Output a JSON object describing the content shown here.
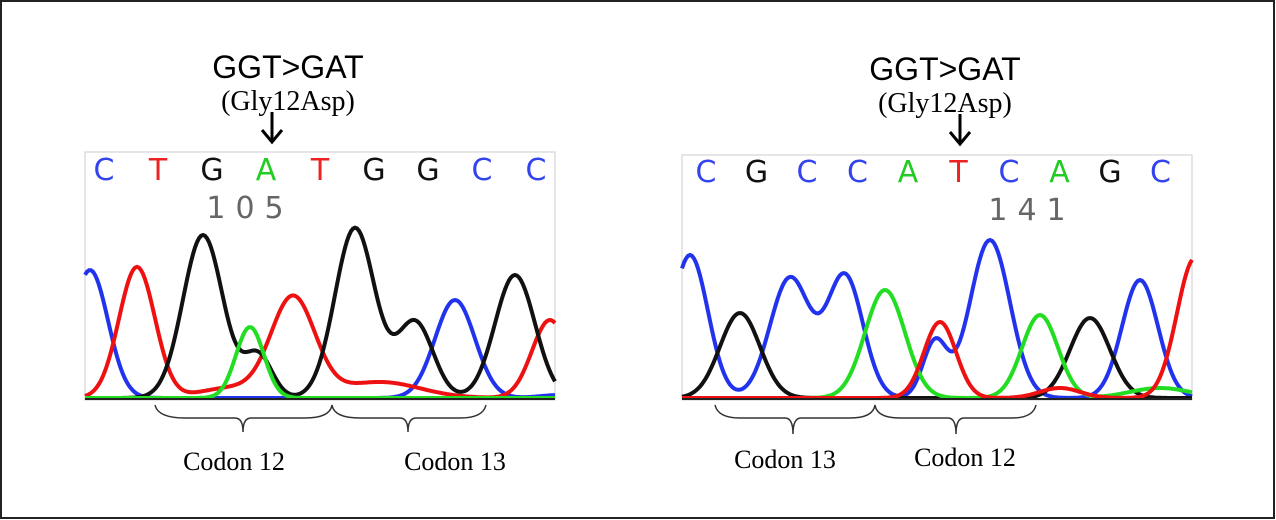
{
  "panels": [
    {
      "mutation": "GGT>GAT",
      "protein_change": "(Gly12Asp)",
      "bases": [
        {
          "letter": "C",
          "color": "#3344ee"
        },
        {
          "letter": "T",
          "color": "#ee2222"
        },
        {
          "letter": "G",
          "color": "#111111"
        },
        {
          "letter": "A",
          "color": "#22cc22"
        },
        {
          "letter": "T",
          "color": "#ee2222"
        },
        {
          "letter": "G",
          "color": "#111111"
        },
        {
          "letter": "G",
          "color": "#111111"
        },
        {
          "letter": "C",
          "color": "#3344ee"
        },
        {
          "letter": "C",
          "color": "#3344ee"
        }
      ],
      "position": "105",
      "codons": [
        "Codon 12",
        "Codon 13"
      ]
    },
    {
      "mutation": "GGT>GAT",
      "protein_change": "(Gly12Asp)",
      "bases": [
        {
          "letter": "C",
          "color": "#3344ee"
        },
        {
          "letter": "G",
          "color": "#111111"
        },
        {
          "letter": "C",
          "color": "#3344ee"
        },
        {
          "letter": "C",
          "color": "#3344ee"
        },
        {
          "letter": "A",
          "color": "#22cc22"
        },
        {
          "letter": "T",
          "color": "#ee2222"
        },
        {
          "letter": "C",
          "color": "#3344ee"
        },
        {
          "letter": "A",
          "color": "#22cc22"
        },
        {
          "letter": "G",
          "color": "#111111"
        },
        {
          "letter": "C",
          "color": "#3344ee"
        }
      ],
      "position": "141",
      "codons": [
        "Codon 13",
        "Codon 12"
      ]
    }
  ]
}
